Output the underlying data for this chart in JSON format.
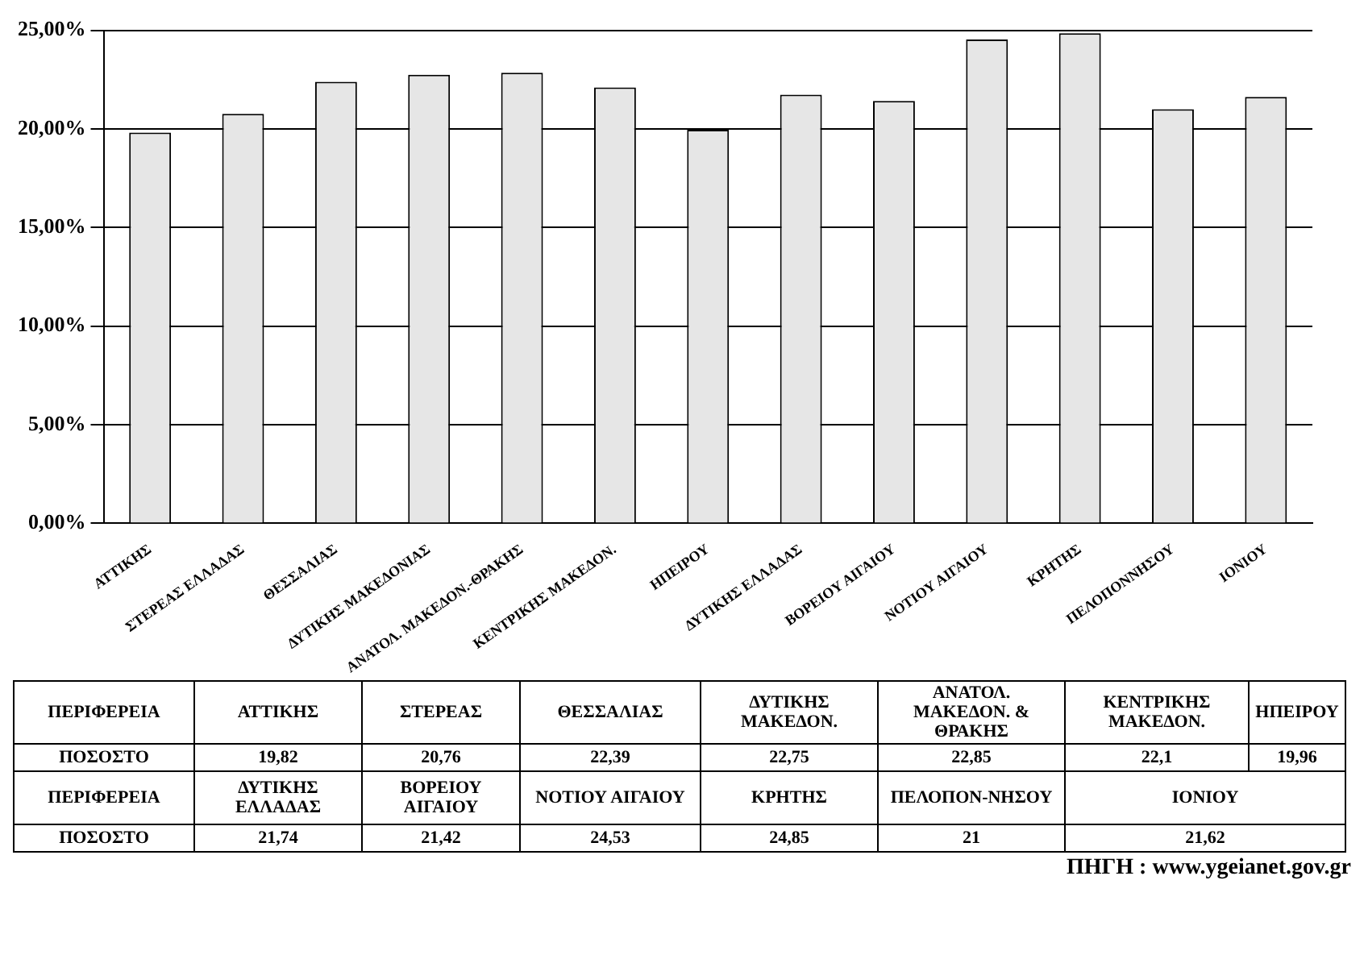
{
  "chart_data": [
    {
      "type": "bar",
      "categories": [
        "ΑΤΤΙΚΗΣ",
        "ΣΤΕΡΕΑΣ ΕΛΛΑΔΑΣ",
        "ΘΕΣΣΑΛΙΑΣ",
        "ΔΥΤΙΚΗΣ ΜΑΚΕΔΟΝΙΑΣ",
        "ΑΝΑΤΟΛ. ΜΑΚΕΔΟΝ.-ΘΡΑΚΗΣ",
        "ΚΕΝΤΡΙΚΗΣ ΜΑΚΕΔΟΝ.",
        "ΗΠΕΙΡΟΥ",
        "ΔΥΤΙΚΗΣ ΕΛΛΑΔΑΣ",
        "ΒΟΡΕΙΟΥ ΑΙΓΑΙΟΥ",
        "ΝΟΤΙΟΥ ΑΙΓΑΙΟΥ",
        "ΚΡΗΤΗΣ",
        "ΠΕΛΟΠΟΝΝΗΣΟΥ",
        "ΙΟΝΙΟΥ"
      ],
      "values": [
        19.82,
        20.76,
        22.39,
        22.75,
        22.85,
        22.1,
        19.96,
        21.74,
        21.42,
        24.53,
        24.85,
        21,
        21.62
      ],
      "color": "#e6e6e6",
      "ylim": [
        0,
        25
      ],
      "yticks": [
        {
          "value": 0,
          "label": "0,00%"
        },
        {
          "value": 5,
          "label": "5,00%"
        },
        {
          "value": 10,
          "label": "10,00%"
        },
        {
          "value": 15,
          "label": "15,00%"
        },
        {
          "value": 20,
          "label": "20,00%"
        },
        {
          "value": 25,
          "label": "25,00%"
        }
      ],
      "grid": "y",
      "legend": false,
      "annotations": [
        "ΠΗΓΗ : www.ygeianet.gov.gr"
      ]
    },
    {
      "type": "other",
      "annotations": [
        "ΠΕΡΙΦΕΡΕΙΑ",
        "ΑΤΤΙΚΗΣ",
        "ΣΤΕΡΕΑΣ",
        "ΘΕΣΣΑΛΙΑΣ",
        "ΔΥΤΙΚΗΣ ΜΑΚΕΔΟΝ.",
        "ΑΝΑΤΟΛ. ΜΑΚΕΔΟΝ. & ΘΡΑΚΗΣ",
        "ΚΕΝΤΡΙΚΗΣ ΜΑΚΕΔΟΝ.",
        "ΗΠΕΙΡΟΥ"
      ]
    },
    {
      "type": "other",
      "annotations": [
        "ΠΟΣΟΣΤΟ",
        "19,82",
        "20,76",
        "22,39",
        "22,75",
        "22,85",
        "22,1",
        "19,96"
      ]
    },
    {
      "type": "other",
      "annotations": [
        "ΠΕΡΙΦΕΡΕΙΑ",
        "ΔΥΤΙΚΗΣ ΕΛΛΑΔΑΣ",
        "ΒΟΡΕΙΟΥ ΑΙΓΑΙΟΥ",
        "ΝΟΤΙΟΥ ΑΙΓΑΙΟΥ",
        "ΚΡΗΤΗΣ",
        "ΠΕΛΟΠΟΝ-ΝΗΣΟΥ",
        "ΙΟΝΙΟΥ"
      ]
    },
    {
      "type": "other",
      "annotations": [
        "ΠΟΣΟΣΤΟ",
        "21,74",
        "21,42",
        "24,53",
        "24,85",
        "21",
        "21,62"
      ]
    }
  ]
}
